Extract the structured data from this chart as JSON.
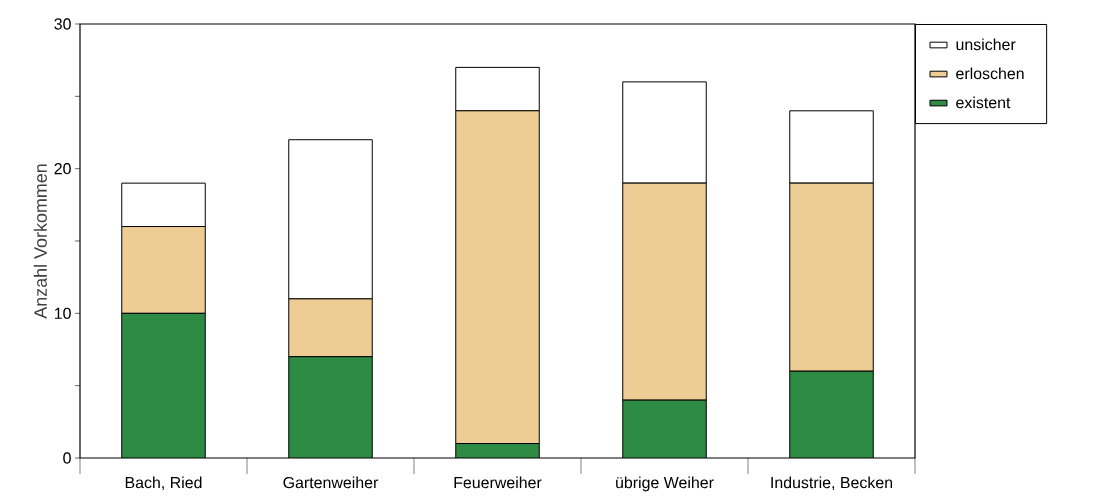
{
  "chart_data": {
    "type": "bar",
    "stacked": true,
    "ylabel": "Anzahl Vorkommen",
    "categories": [
      "Bach, Ried",
      "Gartenweiher",
      "Feuerweiher",
      "übrige Weiher",
      "Industrie, Becken"
    ],
    "series": [
      {
        "name": "existent",
        "color": "#2e8b43",
        "values": [
          10,
          7,
          1,
          4,
          6
        ]
      },
      {
        "name": "erloschen",
        "color": "#edcd94",
        "values": [
          6,
          4,
          23,
          15,
          13
        ]
      },
      {
        "name": "unsicher",
        "color": "#ffffff",
        "values": [
          3,
          11,
          3,
          7,
          5
        ]
      }
    ],
    "ylim": [
      0,
      30
    ],
    "yticks": [
      0,
      {
        "value": 5,
        "label": null
      },
      10,
      {
        "value": 15,
        "label": null
      },
      20,
      {
        "value": 25,
        "label": null
      },
      30
    ],
    "legend": "top right"
  }
}
